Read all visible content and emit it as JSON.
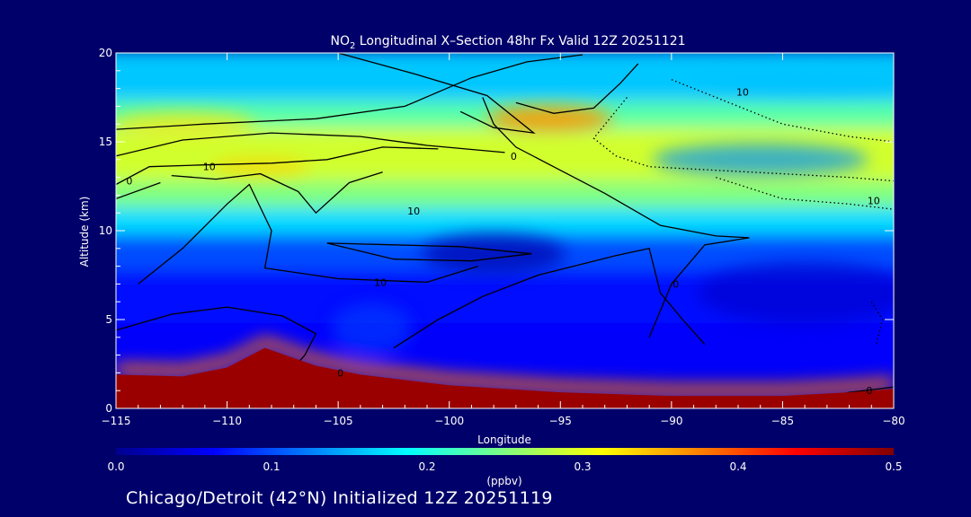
{
  "chart_data": {
    "type": "heatmap",
    "title_prefix": "NO",
    "title_sub": "2",
    "title_suffix": " Longitudinal X–Section 48hr  Fx Valid 12Z 20251121",
    "xlabel": "Longitude",
    "ylabel": "Altitude (km)",
    "xlim": [
      -115,
      -80
    ],
    "ylim": [
      0,
      20
    ],
    "x_ticks": [
      -115,
      -110,
      -105,
      -100,
      -95,
      -90,
      -85,
      -80
    ],
    "x_tick_labels": [
      "−115",
      "−110",
      "−105",
      "−100",
      "−95",
      "−90",
      "−85",
      "−80"
    ],
    "y_ticks": [
      0,
      5,
      10,
      15,
      20
    ],
    "y_tick_labels": [
      "0",
      "5",
      "10",
      "15",
      "20"
    ],
    "colorbar": {
      "min": 0.0,
      "max": 0.5,
      "ticks": [
        0.0,
        0.1,
        0.2,
        0.3,
        0.4,
        0.5
      ],
      "tick_labels": [
        "0.0",
        "0.1",
        "0.2",
        "0.3",
        "0.4",
        "0.5"
      ],
      "unit_label": "(ppbv)",
      "colors": [
        "#00008f",
        "#0000ff",
        "#0080ff",
        "#00ffff",
        "#80ff80",
        "#ffff00",
        "#ff8000",
        "#ff0000",
        "#800000"
      ]
    },
    "field_bands": [
      {
        "alt_from": 0,
        "alt_to": 2,
        "value": 0.05
      },
      {
        "alt_from": 2,
        "alt_to": 5,
        "value": 0.06
      },
      {
        "alt_from": 5,
        "alt_to": 8,
        "value": 0.07
      },
      {
        "alt_from": 8,
        "alt_to": 10,
        "value": 0.1
      },
      {
        "alt_from": 10,
        "alt_to": 11.5,
        "value": 0.17
      },
      {
        "alt_from": 11.5,
        "alt_to": 13,
        "value": 0.25
      },
      {
        "alt_from": 13,
        "alt_to": 16,
        "value": 0.29
      },
      {
        "alt_from": 16,
        "alt_to": 17.5,
        "value": 0.23
      },
      {
        "alt_from": 17.5,
        "alt_to": 20,
        "value": 0.16
      }
    ],
    "terrain": [
      {
        "lon": -115,
        "alt": 1.9
      },
      {
        "lon": -112,
        "alt": 1.8
      },
      {
        "lon": -110,
        "alt": 2.3
      },
      {
        "lon": -108.3,
        "alt": 3.4
      },
      {
        "lon": -106,
        "alt": 2.4
      },
      {
        "lon": -104,
        "alt": 1.9
      },
      {
        "lon": -100,
        "alt": 1.3
      },
      {
        "lon": -95,
        "alt": 0.9
      },
      {
        "lon": -90,
        "alt": 0.7
      },
      {
        "lon": -85,
        "alt": 0.7
      },
      {
        "lon": -82,
        "alt": 0.9
      },
      {
        "lon": -80,
        "alt": 1.1
      }
    ],
    "contour_labels": [
      {
        "text": "10",
        "lon": -110.8,
        "alt": 13.6
      },
      {
        "text": "0",
        "lon": -114.4,
        "alt": 12.8
      },
      {
        "text": "10",
        "lon": -101.6,
        "alt": 11.1
      },
      {
        "text": "0",
        "lon": -97.1,
        "alt": 14.2
      },
      {
        "text": "10",
        "lon": -103.1,
        "alt": 7.1
      },
      {
        "text": "0",
        "lon": -89.8,
        "alt": 7.0
      },
      {
        "text": "10",
        "lon": -86.8,
        "alt": 17.8
      },
      {
        "text": "10",
        "lon": -80.9,
        "alt": 11.7
      },
      {
        "text": "0",
        "lon": -104.9,
        "alt": 2.0
      },
      {
        "text": "0",
        "lon": -81.1,
        "alt": 1.0
      }
    ]
  },
  "footer": "Chicago/Detroit (42°N) Initialized 12Z 20251119"
}
